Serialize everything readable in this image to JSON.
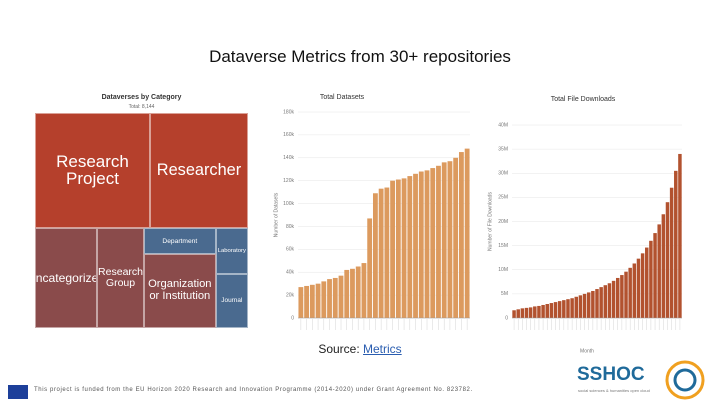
{
  "title": "Dataverse Metrics from 30+ repositories",
  "source_label": "Source:",
  "source_link": "Metrics",
  "footer": "This project is funded from the EU Horizon 2020 Research and Innovation Programme (2014-2020) under Grant Agreement No. 823782.",
  "logo": {
    "name": "SSHOC",
    "tagline": "social sciences & humanities open cloud"
  },
  "chart_data": [
    {
      "type": "treemap",
      "title": "Dataverses by Category",
      "subtitle": "Total: 8,144",
      "categories": [
        "Research Project",
        "Researcher",
        "Uncategorized",
        "Research Group",
        "Department",
        "Organization or Institution",
        "Laboratory",
        "Journal"
      ],
      "values": [
        2352,
        2004,
        1104,
        834,
        334,
        941,
        264,
        311
      ],
      "colors": [
        "#b5402c",
        "#b5402c",
        "#8a4b4b",
        "#8a4b4b",
        "#4a6a8f",
        "#8a4b4b",
        "#4a6a8f",
        "#4a6a8f"
      ]
    },
    {
      "type": "bar",
      "title": "Total Datasets",
      "y_label": "Number of Datasets",
      "color": "#dc9a5e",
      "categories": [
        null,
        null,
        null,
        null,
        null,
        null,
        null,
        null,
        null,
        null,
        null,
        null,
        null,
        null,
        null,
        null,
        null,
        null,
        null,
        null,
        null,
        null,
        null,
        null,
        null,
        null,
        null,
        null,
        null,
        null
      ],
      "values": [
        27000,
        28000,
        29000,
        30000,
        32000,
        34000,
        35000,
        37000,
        42000,
        43000,
        45000,
        48000,
        87000,
        109000,
        113000,
        114000,
        120000,
        121000,
        122000,
        124000,
        126000,
        128000,
        129000,
        131000,
        133000,
        136000,
        137000,
        140000,
        145000,
        148000
      ],
      "ylim": [
        0,
        180000
      ],
      "yticks": [
        0,
        {
          "value": 20000,
          "label": "20k"
        },
        {
          "value": 40000,
          "label": "40k"
        },
        {
          "value": 60000,
          "label": "60k"
        },
        {
          "value": 80000,
          "label": "80k"
        },
        {
          "value": 100000,
          "label": "100k"
        },
        {
          "value": 120000,
          "label": "120k"
        },
        {
          "value": 140000,
          "label": "140k"
        },
        {
          "value": 160000,
          "label": "160k"
        },
        {
          "value": 180000,
          "label": "180k"
        }
      ],
      "grid": true
    },
    {
      "type": "bar",
      "title": "Total File Downloads",
      "y_label": "Number of File Downloads",
      "x_label": "Month",
      "color": "#b2522f",
      "categories": [
        null,
        null,
        null,
        null,
        null,
        null,
        null,
        null,
        null,
        null,
        null,
        null,
        null,
        null,
        null,
        null,
        null,
        null,
        null,
        null,
        null,
        null,
        null,
        null,
        null,
        null,
        null,
        null,
        null,
        null,
        null,
        null,
        null,
        null,
        null,
        null,
        null,
        null,
        null,
        null,
        null
      ],
      "values": [
        1600000,
        1800000,
        2000000,
        2100000,
        2200000,
        2400000,
        2500000,
        2700000,
        2900000,
        3100000,
        3300000,
        3500000,
        3700000,
        3900000,
        4100000,
        4400000,
        4700000,
        5000000,
        5300000,
        5600000,
        6000000,
        6400000,
        6800000,
        7200000,
        7700000,
        8300000,
        8900000,
        9600000,
        10400000,
        11300000,
        12300000,
        13400000,
        14600000,
        16000000,
        17600000,
        19400000,
        21500000,
        24000000,
        27000000,
        30500000,
        34000000
      ],
      "ylim": [
        0,
        40000000
      ],
      "yticks": [
        0,
        {
          "value": 5000000,
          "label": "5M"
        },
        {
          "value": 10000000,
          "label": "10M"
        },
        {
          "value": 15000000,
          "label": "15M"
        },
        {
          "value": 20000000,
          "label": "20M"
        },
        {
          "value": 25000000,
          "label": "25M"
        },
        {
          "value": 30000000,
          "label": "30M"
        },
        {
          "value": 35000000,
          "label": "35M"
        },
        {
          "value": 40000000,
          "label": "40M"
        }
      ],
      "grid": true
    }
  ]
}
